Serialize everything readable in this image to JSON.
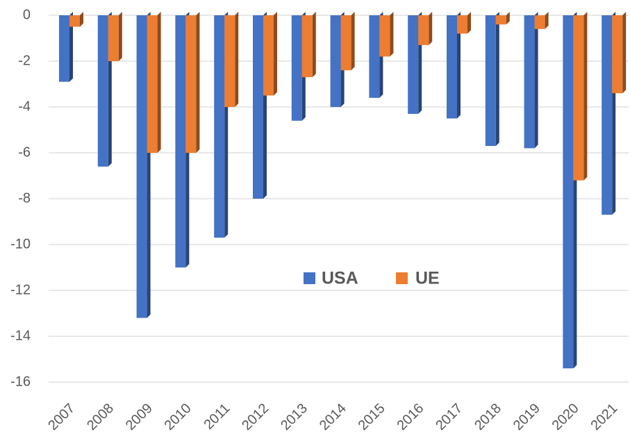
{
  "chart_data": {
    "type": "bar",
    "categories": [
      "2007",
      "2008",
      "2009",
      "2010",
      "2011",
      "2012",
      "2013",
      "2014",
      "2015",
      "2016",
      "2017",
      "2018",
      "2019",
      "2020",
      "2021"
    ],
    "series": [
      {
        "name": "USA",
        "color": "#4472c4",
        "values": [
          -2.9,
          -6.6,
          -13.2,
          -11.0,
          -9.7,
          -8.0,
          -4.6,
          -4.0,
          -3.6,
          -4.3,
          -4.5,
          -5.7,
          -5.8,
          -15.4,
          -8.7
        ]
      },
      {
        "name": "UE",
        "color": "#ed7d31",
        "values": [
          -0.5,
          -2.0,
          -6.0,
          -6.0,
          -4.0,
          -3.5,
          -2.7,
          -2.4,
          -1.8,
          -1.3,
          -0.8,
          -0.4,
          -0.6,
          -7.2,
          -3.4
        ]
      }
    ],
    "ylim": [
      -16,
      0
    ],
    "yticks": [
      0,
      -2,
      -4,
      -6,
      -8,
      -10,
      -12,
      -14,
      -16
    ],
    "grid": true
  }
}
